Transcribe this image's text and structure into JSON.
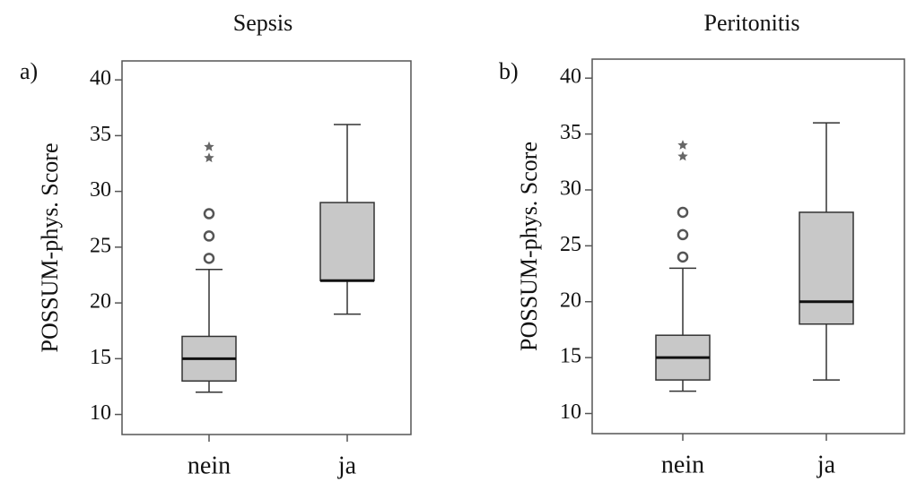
{
  "chart_data": [
    {
      "type": "box",
      "label": "a)",
      "title": "Sepsis",
      "y_label": "POSSUM-phys. Score",
      "categories": [
        "nein",
        "ja"
      ],
      "box_color": "#c8c8c8",
      "boxes": [
        {
          "whislo": 12,
          "q1": 13,
          "med": 15,
          "q3": 17,
          "whishi": 23,
          "outliers": [
            24,
            26,
            28
          ],
          "extremes": [
            33,
            34
          ]
        },
        {
          "whislo": 19,
          "q1": 22,
          "med": 22,
          "q3": 29,
          "whishi": 36,
          "outliers": [],
          "extremes": []
        }
      ],
      "ylim": [
        8.2,
        41.7
      ],
      "yticks": [
        10,
        15,
        20,
        25,
        30,
        35,
        40
      ],
      "grid": false
    },
    {
      "type": "box",
      "label": "b)",
      "title": "Peritonitis",
      "y_label": "POSSUM-phys. Score",
      "categories": [
        "nein",
        "ja"
      ],
      "box_color": "#c8c8c8",
      "boxes": [
        {
          "whislo": 12,
          "q1": 13,
          "med": 15,
          "q3": 17,
          "whishi": 23,
          "outliers": [
            24,
            26,
            28
          ],
          "extremes": [
            33,
            34
          ]
        },
        {
          "whislo": 13,
          "q1": 18,
          "med": 20,
          "q3": 28,
          "whishi": 36,
          "outliers": [],
          "extremes": []
        }
      ],
      "ylim": [
        8.2,
        41.7
      ],
      "yticks": [
        10,
        15,
        20,
        25,
        30,
        35,
        40
      ],
      "grid": false
    }
  ]
}
